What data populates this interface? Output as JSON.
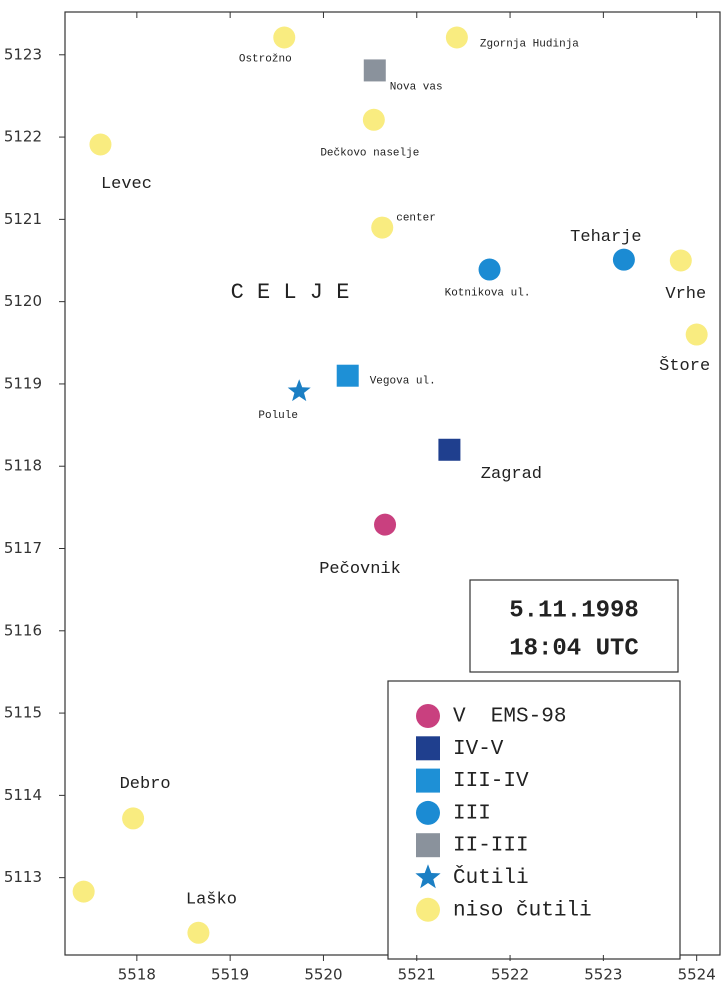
{
  "chart_data": {
    "type": "scatter",
    "xlim": [
      5517.23,
      5524.25
    ],
    "ylim": [
      5112.06,
      5123.52
    ],
    "xticks": [
      5518,
      5519,
      5520,
      5521,
      5522,
      5523,
      5524
    ],
    "yticks": [
      5113,
      5114,
      5115,
      5116,
      5117,
      5118,
      5119,
      5120,
      5121,
      5122,
      5123
    ],
    "annotations": [
      "C E L J E",
      "5.11.1998",
      "18:04 UTC"
    ],
    "series": [
      {
        "name": "V  EMS-98",
        "color": "#c9407f",
        "marker": "circle",
        "x": [
          5520.66
        ],
        "y": [
          5117.29
        ],
        "labels": [
          "Pečovnik"
        ]
      },
      {
        "name": "IV-V",
        "color": "#1f3f8e",
        "marker": "square",
        "x": [
          5521.35
        ],
        "y": [
          5118.2
        ],
        "labels": [
          "Zagrad"
        ]
      },
      {
        "name": "III-IV",
        "color": "#1e90d6",
        "marker": "square",
        "x": [
          5520.26
        ],
        "y": [
          5119.1
        ],
        "labels": [
          "Vegova ul."
        ]
      },
      {
        "name": "III",
        "color": "#1b8bd3",
        "marker": "circle",
        "x": [
          5521.78,
          5523.22
        ],
        "y": [
          5120.39,
          5120.51
        ],
        "labels": [
          "Kotnikova ul.",
          "Teharje"
        ]
      },
      {
        "name": "II-III",
        "color": "#8a929c",
        "marker": "square",
        "x": [
          5520.55
        ],
        "y": [
          5122.81
        ],
        "labels": [
          "Nova vas"
        ]
      },
      {
        "name": "Čutili",
        "color": "#1b7fc4",
        "marker": "star",
        "x": [
          5519.74
        ],
        "y": [
          5118.91
        ],
        "labels": [
          "Polule"
        ]
      },
      {
        "name": "niso čutili",
        "color": "#f9ec80",
        "marker": "circle",
        "x": [
          5519.58,
          5521.43,
          5520.54,
          5517.61,
          5520.63,
          5523.83,
          5524.0,
          5517.96,
          5517.43,
          5518.66
        ],
        "y": [
          5123.21,
          5123.21,
          5122.21,
          5121.91,
          5120.9,
          5120.5,
          5119.6,
          5113.72,
          5112.83,
          5112.33
        ],
        "labels": [
          "Ostrožno",
          "Zgornja Hudinja",
          "Dečkovo naselje",
          "Levec",
          "center",
          "Vrhe",
          "Štore",
          "Debro",
          null,
          "Laško"
        ]
      }
    ]
  }
}
